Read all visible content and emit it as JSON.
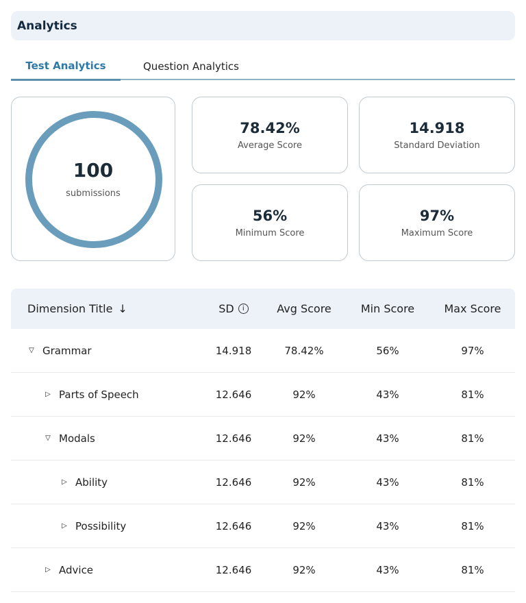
{
  "header": {
    "title": "Analytics"
  },
  "tabs": [
    {
      "label": "Test Analytics",
      "active": true
    },
    {
      "label": "Question Analytics",
      "active": false
    }
  ],
  "summary": {
    "submissions_count": "100",
    "submissions_label": "submissions",
    "stats": [
      {
        "value": "78.42%",
        "label": "Average Score"
      },
      {
        "value": "14.918",
        "label": "Standard Deviation"
      },
      {
        "value": "56%",
        "label": "Minimum Score"
      },
      {
        "value": "97%",
        "label": "Maximum Score"
      }
    ]
  },
  "table": {
    "headers": {
      "title": "Dimension Title",
      "sd": "SD",
      "avg": "Avg Score",
      "min": "Min Score",
      "max": "Max Score"
    },
    "rows": [
      {
        "title": "Grammar",
        "level": 0,
        "expanded": true,
        "sd": "14.918",
        "avg": "78.42%",
        "min": "56%",
        "max": "97%"
      },
      {
        "title": "Parts of Speech",
        "level": 1,
        "expanded": false,
        "sd": "12.646",
        "avg": "92%",
        "min": "43%",
        "max": "81%"
      },
      {
        "title": "Modals",
        "level": 1,
        "expanded": true,
        "sd": "12.646",
        "avg": "92%",
        "min": "43%",
        "max": "81%"
      },
      {
        "title": "Ability",
        "level": 2,
        "expanded": false,
        "sd": "12.646",
        "avg": "92%",
        "min": "43%",
        "max": "81%"
      },
      {
        "title": "Possibility",
        "level": 2,
        "expanded": false,
        "sd": "12.646",
        "avg": "92%",
        "min": "43%",
        "max": "81%"
      },
      {
        "title": "Advice",
        "level": 1,
        "expanded": false,
        "sd": "12.646",
        "avg": "92%",
        "min": "43%",
        "max": "81%"
      }
    ]
  }
}
